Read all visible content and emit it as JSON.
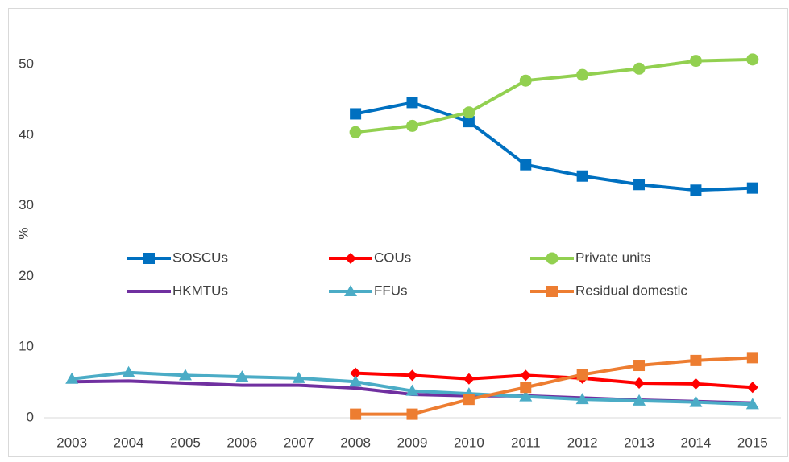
{
  "chart_data": {
    "type": "line",
    "y_label": "%",
    "categories": [
      "2003",
      "2004",
      "2005",
      "2006",
      "2007",
      "2008",
      "2009",
      "2010",
      "2011",
      "2012",
      "2013",
      "2014",
      "2015"
    ],
    "ylim": [
      0,
      55
    ],
    "yticks": [
      0,
      10,
      20,
      30,
      40,
      50
    ],
    "series": [
      {
        "name": "SOSCUs",
        "color": "#0070c0",
        "marker": "square",
        "values": [
          null,
          null,
          null,
          null,
          null,
          43.0,
          44.6,
          41.9,
          35.8,
          34.2,
          33.0,
          32.2,
          32.5
        ]
      },
      {
        "name": "COUs",
        "color": "#ff0000",
        "marker": "diamond",
        "values": [
          null,
          null,
          null,
          null,
          null,
          6.3,
          6.0,
          5.5,
          6.0,
          5.6,
          4.9,
          4.8,
          4.3
        ]
      },
      {
        "name": "Private units",
        "color": "#92d050",
        "marker": "circle",
        "values": [
          null,
          null,
          null,
          null,
          null,
          40.4,
          41.3,
          43.2,
          47.7,
          48.5,
          49.4,
          50.5,
          50.7
        ]
      },
      {
        "name": "HKMTUs",
        "color": "#7030a0",
        "marker": "none",
        "values": [
          5.1,
          5.2,
          4.9,
          4.6,
          4.6,
          4.2,
          3.3,
          3.1,
          3.1,
          2.8,
          2.5,
          2.3,
          2.1
        ]
      },
      {
        "name": "FFUs",
        "color": "#4bacc6",
        "marker": "triangle",
        "values": [
          5.5,
          6.4,
          6.0,
          5.8,
          5.6,
          5.1,
          3.8,
          3.4,
          3.0,
          2.6,
          2.4,
          2.2,
          1.9
        ]
      },
      {
        "name": "Residual domestic",
        "color": "#ed7d31",
        "marker": "square",
        "values": [
          null,
          null,
          null,
          null,
          null,
          0.5,
          0.5,
          2.6,
          4.3,
          6.1,
          7.4,
          8.1,
          8.5
        ]
      }
    ]
  }
}
